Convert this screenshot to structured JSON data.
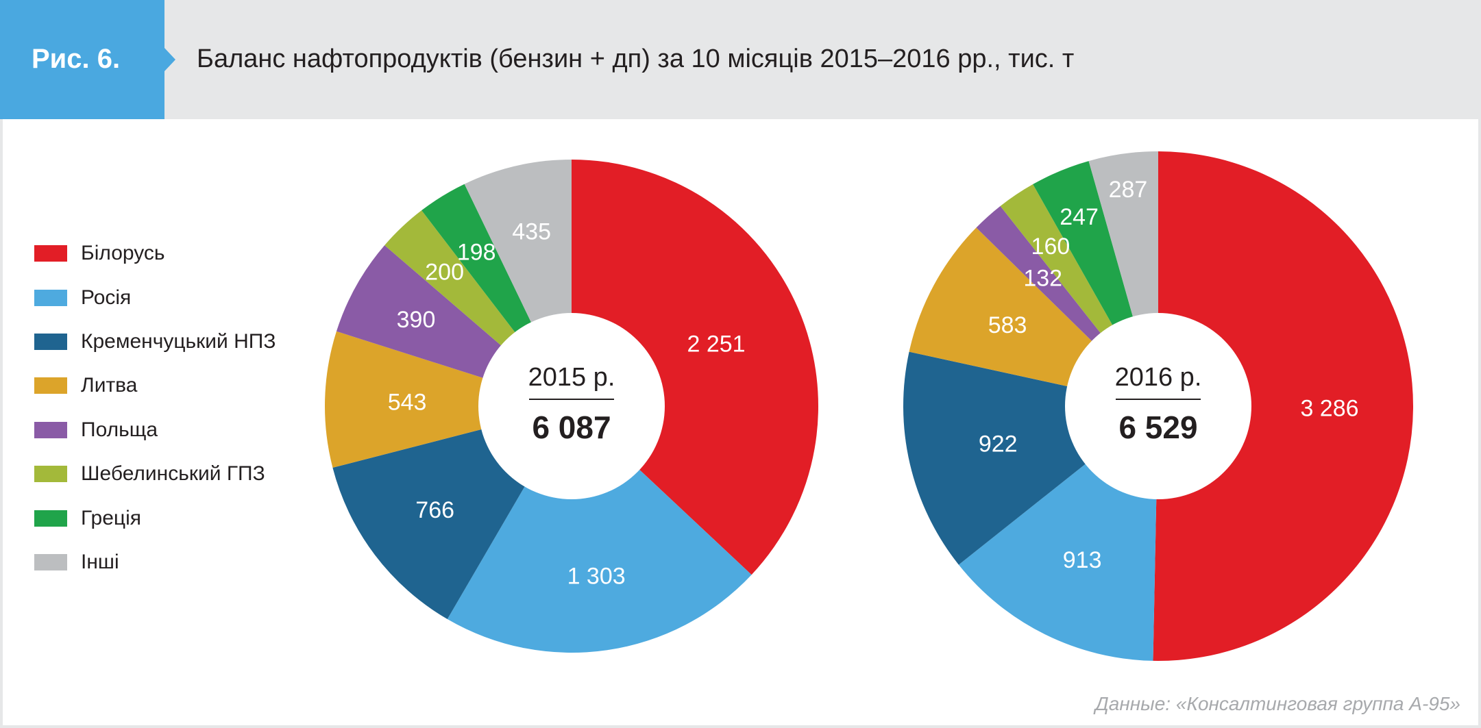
{
  "header": {
    "figure_label": "Рис. 6.",
    "title": "Баланс нафтопродуктів (бензин + дп) за 10 місяців 2015–2016 рр., тис. т"
  },
  "legend": [
    {
      "label": "Білорусь",
      "color": "#e21e26"
    },
    {
      "label": "Росія",
      "color": "#4eaadf"
    },
    {
      "label": "Кременчуцький НПЗ",
      "color": "#1f6490"
    },
    {
      "label": "Литва",
      "color": "#dca42a"
    },
    {
      "label": "Польща",
      "color": "#8a5ba6"
    },
    {
      "label": "Шебелинський ГПЗ",
      "color": "#a3b93a"
    },
    {
      "label": "Греція",
      "color": "#20a44a"
    },
    {
      "label": "Інші",
      "color": "#bcbec0"
    }
  ],
  "chart_data": [
    {
      "type": "pie",
      "center_year": "2015 р.",
      "center_total": "6 087",
      "categories": [
        "Білорусь",
        "Росія",
        "Кременчуцький НПЗ",
        "Литва",
        "Польща",
        "Шебелинський ГПЗ",
        "Греція",
        "Інші"
      ],
      "values": [
        2251,
        1303,
        766,
        543,
        390,
        200,
        198,
        435
      ],
      "value_labels": [
        "2 251",
        "1 303",
        "766",
        "543",
        "390",
        "200",
        "198",
        "435"
      ]
    },
    {
      "type": "pie",
      "center_year": "2016 р.",
      "center_total": "6 529",
      "categories": [
        "Білорусь",
        "Росія",
        "Кременчуцький НПЗ",
        "Литва",
        "Польща",
        "Шебелинський ГПЗ",
        "Греція",
        "Інші"
      ],
      "values": [
        3286,
        913,
        922,
        583,
        132,
        160,
        247,
        287
      ],
      "value_labels": [
        "3 286",
        "913",
        "922",
        "583",
        "132",
        "160",
        "247",
        "287"
      ]
    }
  ],
  "source": "Данные: «Консалтинговая группа А-95»"
}
